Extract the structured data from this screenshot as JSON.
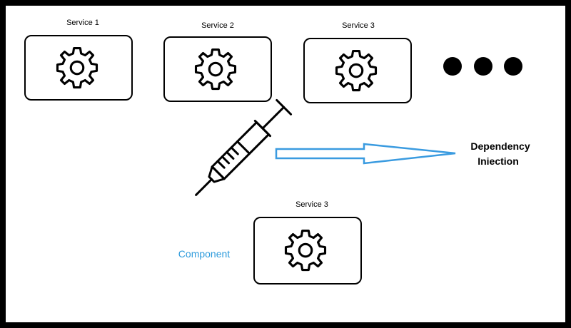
{
  "diagram": {
    "services": [
      {
        "label": "Service 1"
      },
      {
        "label": "Service 2"
      },
      {
        "label": "Service 3"
      }
    ],
    "ellipsis_icon": "three-dots-icon",
    "syringe_icon": "syringe-icon",
    "gear_icon": "gear-icon",
    "arrow_label_line1": "Dependency",
    "arrow_label_line2": "Iniection",
    "component": {
      "service_label": "Service 3",
      "label": "Component"
    },
    "colors": {
      "background": "#ffffff",
      "frame": "#000000",
      "arrow_stroke": "#3a9be0",
      "component_label": "#2e9bdc"
    }
  }
}
